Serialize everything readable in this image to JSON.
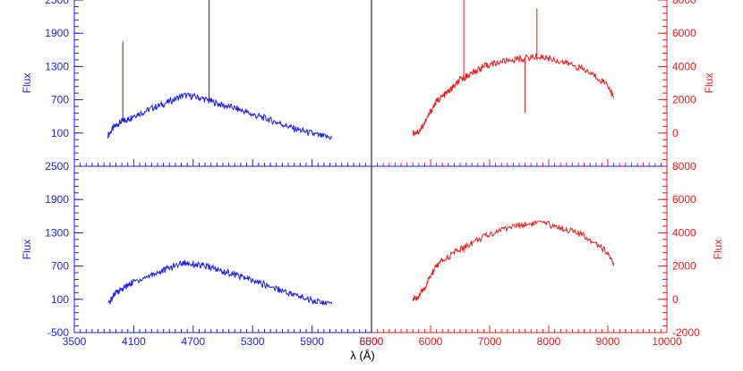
{
  "colors": {
    "blue": "#1f1fe6",
    "red": "#ee1c1c",
    "frame": "#000000"
  },
  "chart_data": [
    {
      "id": "top-left",
      "type": "line",
      "color": "#1f1fe6",
      "ylabel": "Flux",
      "xlim": [
        3500,
        6500
      ],
      "ylim": [
        -500,
        2500
      ],
      "yticks": [
        100,
        700,
        1300,
        1900,
        2500
      ],
      "x_tick_labels": false,
      "spikes": [
        {
          "x": 3990,
          "y": 1750
        },
        {
          "x": 4860,
          "y": 2500
        }
      ],
      "series": [
        {
          "x": [
            3840,
            3900,
            3950,
            4000,
            4050,
            4100,
            4200,
            4300,
            4400,
            4500,
            4600,
            4700,
            4800,
            4900,
            5000,
            5100,
            5200,
            5300,
            5400,
            5500,
            5600,
            5700,
            5800,
            5900,
            6000,
            6100
          ],
          "y": [
            60,
            200,
            280,
            320,
            350,
            420,
            480,
            560,
            620,
            700,
            780,
            760,
            720,
            660,
            600,
            560,
            500,
            430,
            380,
            320,
            260,
            190,
            140,
            90,
            40,
            20
          ]
        }
      ]
    },
    {
      "id": "top-right",
      "type": "line",
      "color": "#ee1c1c",
      "ylabel": "Flux",
      "xlim": [
        5000,
        10000
      ],
      "ylim": [
        -2000,
        8000
      ],
      "yticks": [
        0,
        2000,
        4000,
        6000,
        8000
      ],
      "x_tick_labels": false,
      "spikes": [
        {
          "x": 6563,
          "y": 8000
        },
        {
          "x": 7800,
          "y": 7500
        },
        {
          "x": 7600,
          "y": 1200
        }
      ],
      "series": [
        {
          "x": [
            5700,
            5800,
            5900,
            6000,
            6100,
            6200,
            6300,
            6400,
            6500,
            6600,
            6700,
            6800,
            6900,
            7000,
            7200,
            7400,
            7600,
            7800,
            8000,
            8200,
            8400,
            8600,
            8800,
            9000,
            9100
          ],
          "y": [
            0,
            100,
            600,
            1300,
            1900,
            2200,
            2500,
            2800,
            3200,
            3400,
            3600,
            3800,
            4000,
            4100,
            4300,
            4400,
            4500,
            4600,
            4500,
            4300,
            4100,
            3800,
            3400,
            2900,
            2100
          ]
        }
      ]
    },
    {
      "id": "bottom-left",
      "type": "line",
      "color": "#1f1fe6",
      "ylabel": "Flux",
      "xlim": [
        3500,
        6500
      ],
      "ylim": [
        -500,
        2500
      ],
      "yticks": [
        -500,
        100,
        700,
        1300,
        1900,
        2500
      ],
      "xticks": [
        3500,
        4100,
        4700,
        5300,
        5900,
        6500
      ],
      "x_tick_labels": true,
      "spikes": [],
      "series": [
        {
          "x": [
            3840,
            3900,
            3950,
            4000,
            4050,
            4100,
            4200,
            4300,
            4400,
            4500,
            4600,
            4700,
            4800,
            4900,
            5000,
            5100,
            5200,
            5300,
            5400,
            5500,
            5600,
            5700,
            5800,
            5900,
            6000,
            6100
          ],
          "y": [
            0,
            180,
            260,
            300,
            360,
            420,
            480,
            560,
            620,
            700,
            760,
            740,
            700,
            660,
            600,
            560,
            500,
            430,
            380,
            320,
            260,
            190,
            140,
            90,
            40,
            20
          ]
        }
      ]
    },
    {
      "id": "bottom-right",
      "type": "line",
      "color": "#ee1c1c",
      "ylabel": "Flux",
      "xlim": [
        5000,
        10000
      ],
      "ylim": [
        -2000,
        8000
      ],
      "yticks": [
        -2000,
        0,
        2000,
        4000,
        6000,
        8000
      ],
      "xticks": [
        5000,
        6000,
        7000,
        8000,
        9000,
        10000
      ],
      "x_tick_labels": true,
      "spikes": [
        {
          "x": 6563,
          "y": 2800
        }
      ],
      "series": [
        {
          "x": [
            5700,
            5800,
            5900,
            6000,
            6100,
            6200,
            6400,
            6600,
            6800,
            7000,
            7200,
            7400,
            7600,
            7800,
            8000,
            8200,
            8400,
            8600,
            8800,
            9000,
            9100
          ],
          "y": [
            0,
            150,
            700,
            1400,
            2000,
            2300,
            2800,
            3200,
            3600,
            3900,
            4200,
            4400,
            4500,
            4600,
            4500,
            4300,
            4100,
            3800,
            3400,
            2800,
            2000
          ]
        }
      ]
    }
  ],
  "x_axis_label": "λ (Å)"
}
